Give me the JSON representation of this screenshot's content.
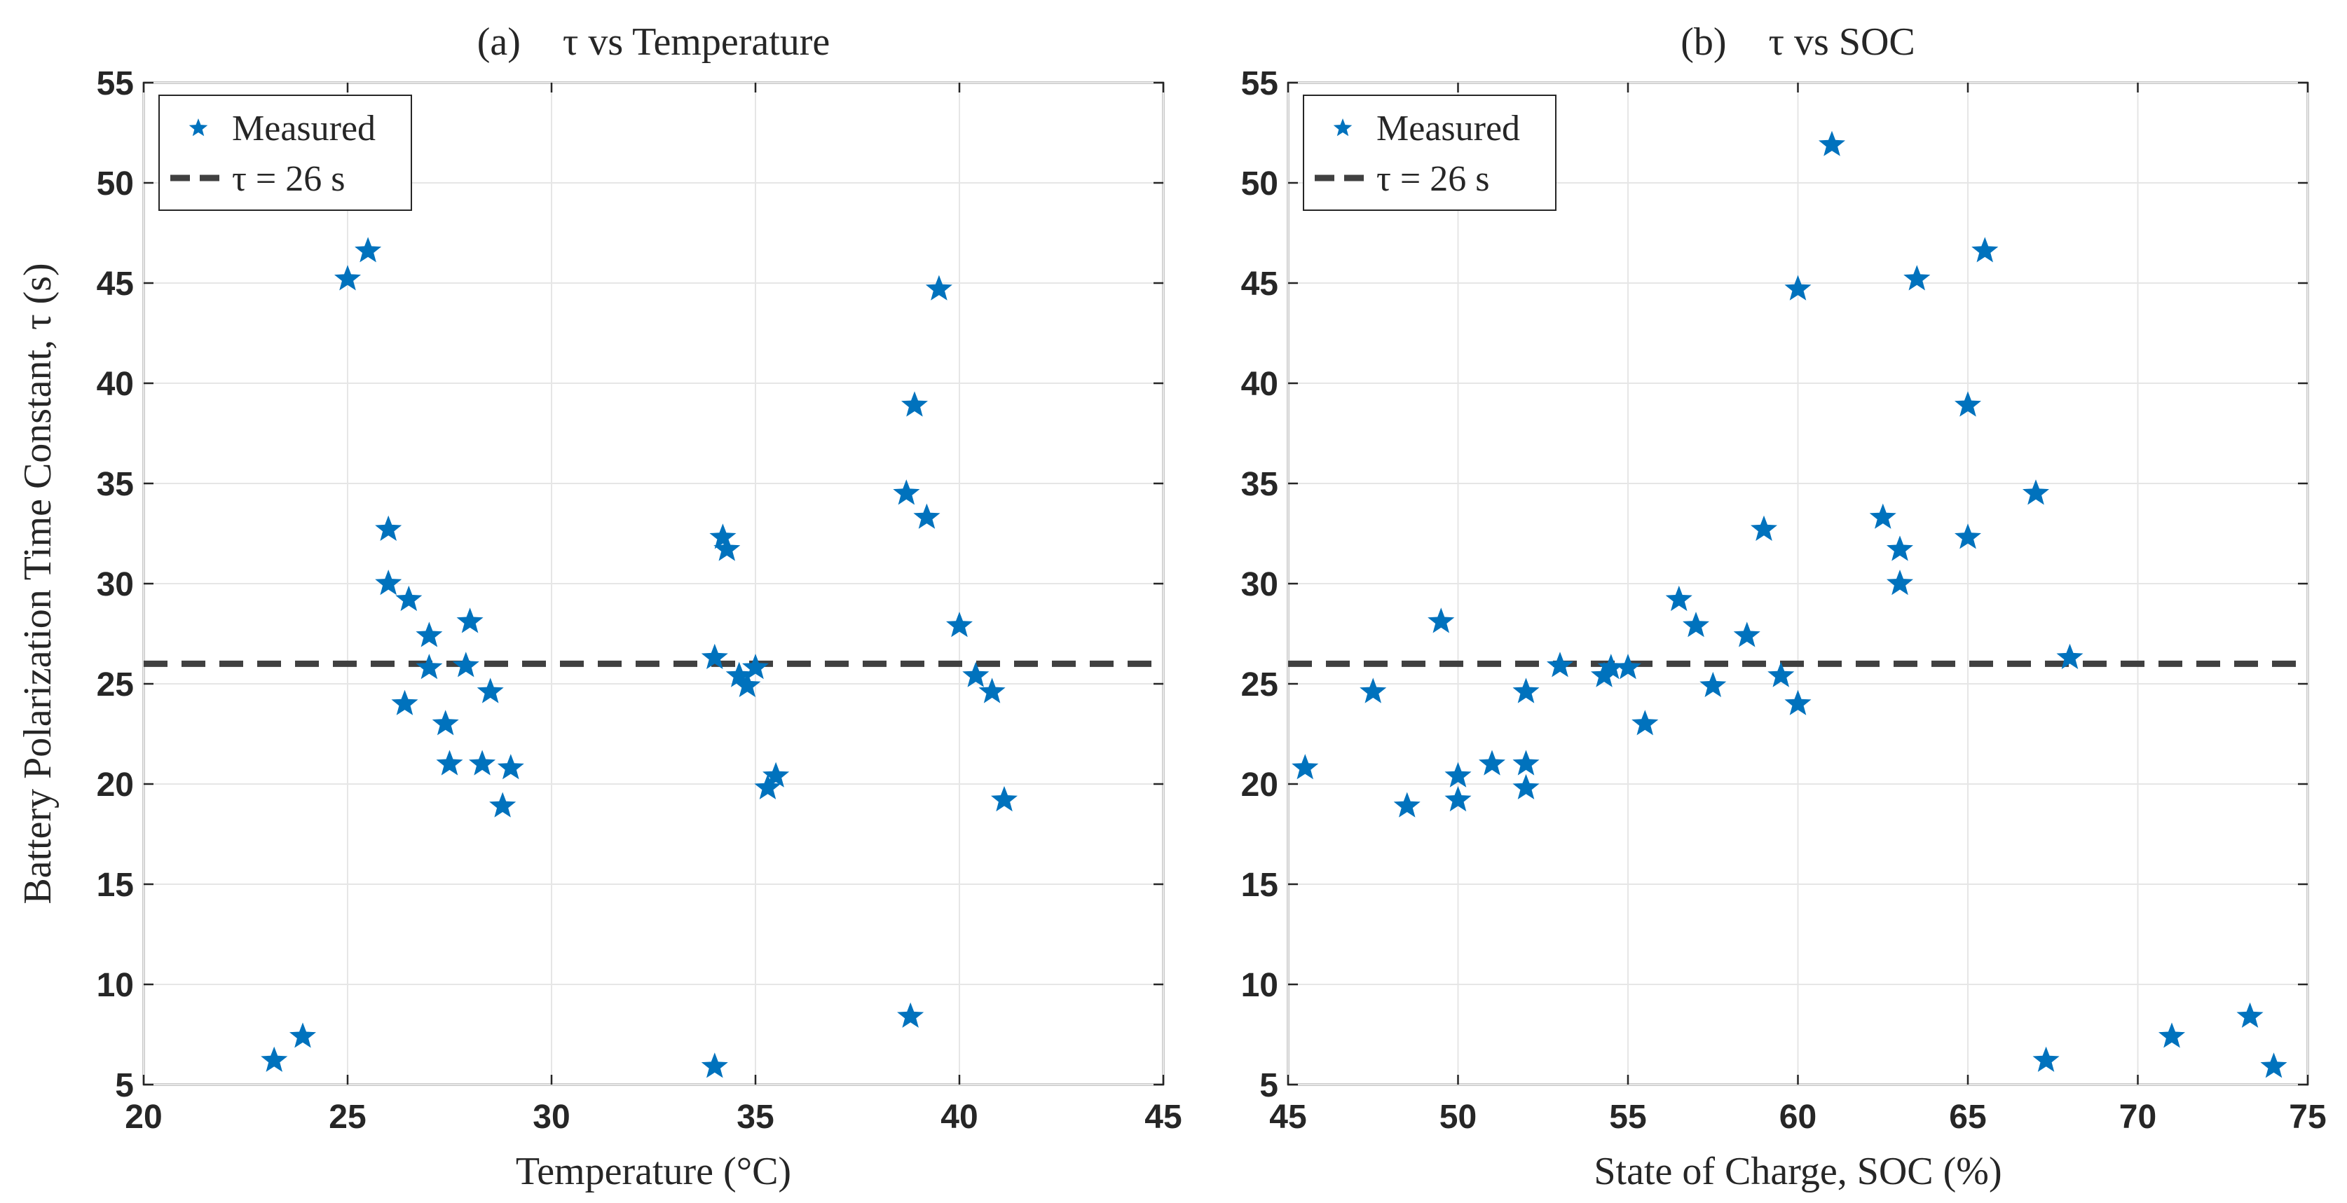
{
  "chart_data": [
    {
      "type": "scatter",
      "panel": "(a)",
      "title": "τ vs Temperature",
      "xlabel": "Temperature (°C)",
      "ylabel": "Battery Polarization Time Constant, τ (s)",
      "xlim": [
        20,
        45
      ],
      "ylim": [
        5,
        55
      ],
      "xticks": [
        "20",
        "25",
        "30",
        "35",
        "40",
        "45"
      ],
      "yticks": [
        "5",
        "10",
        "15",
        "20",
        "25",
        "30",
        "35",
        "40",
        "45",
        "50",
        "55"
      ],
      "grid": true,
      "legend_position": "top-left",
      "legend": {
        "measured": "Measured",
        "reference": "τ = 26 s"
      },
      "reference_line": {
        "y": 26,
        "label": "τ = 26 s"
      },
      "series": [
        {
          "name": "Measured",
          "x": [
            23.2,
            23.9,
            25.0,
            25.5,
            26.0,
            26.0,
            26.5,
            26.4,
            27.0,
            27.0,
            27.4,
            27.5,
            27.9,
            28.0,
            28.3,
            28.5,
            28.8,
            29.0,
            34.0,
            34.2,
            34.3,
            34.0,
            34.6,
            34.8,
            35.0,
            35.3,
            35.5,
            38.7,
            38.9,
            39.2,
            39.5,
            38.8,
            40.0,
            40.4,
            40.8,
            41.1
          ],
          "y": [
            6.2,
            7.4,
            45.2,
            46.6,
            32.7,
            30.0,
            29.2,
            24.0,
            27.4,
            25.8,
            23.0,
            21.0,
            25.9,
            28.1,
            21.0,
            24.6,
            18.9,
            20.8,
            5.9,
            32.3,
            31.7,
            26.3,
            25.4,
            24.9,
            25.8,
            19.8,
            20.4,
            34.5,
            38.9,
            33.3,
            44.7,
            8.4,
            27.9,
            25.4,
            24.6,
            19.2
          ]
        }
      ]
    },
    {
      "type": "scatter",
      "panel": "(b)",
      "title": "τ vs SOC",
      "xlabel": "State of Charge, SOC (%)",
      "ylabel": "",
      "xlim": [
        45,
        75
      ],
      "ylim": [
        5,
        55
      ],
      "xticks": [
        "45",
        "50",
        "55",
        "60",
        "65",
        "70",
        "75"
      ],
      "yticks": [
        "5",
        "10",
        "15",
        "20",
        "25",
        "30",
        "35",
        "40",
        "45",
        "50",
        "55"
      ],
      "grid": true,
      "legend_position": "top-left",
      "legend": {
        "measured": "Measured",
        "reference": "τ = 26 s"
      },
      "reference_line": {
        "y": 26,
        "label": "τ = 26 s"
      },
      "series": [
        {
          "name": "Measured",
          "x": [
            45.5,
            47.5,
            48.5,
            49.5,
            50.0,
            50.0,
            51.0,
            52.0,
            52.0,
            52.0,
            53.0,
            54.3,
            54.5,
            55.0,
            55.5,
            56.5,
            57.0,
            57.5,
            58.5,
            59.0,
            59.5,
            60.0,
            60.0,
            61.0,
            62.5,
            63.0,
            63.0,
            63.5,
            65.0,
            65.0,
            65.5,
            67.0,
            67.3,
            68.0,
            71.0,
            73.3,
            74.0
          ],
          "y": [
            20.8,
            24.6,
            18.9,
            28.1,
            20.4,
            19.2,
            21.0,
            24.6,
            21.0,
            19.8,
            25.9,
            25.4,
            25.8,
            25.8,
            23.0,
            29.2,
            27.9,
            24.9,
            27.4,
            32.7,
            25.4,
            44.7,
            24.0,
            51.9,
            33.3,
            31.7,
            30.0,
            45.2,
            38.9,
            32.3,
            46.6,
            34.5,
            6.2,
            26.3,
            7.4,
            8.4,
            5.9
          ]
        }
      ]
    }
  ]
}
